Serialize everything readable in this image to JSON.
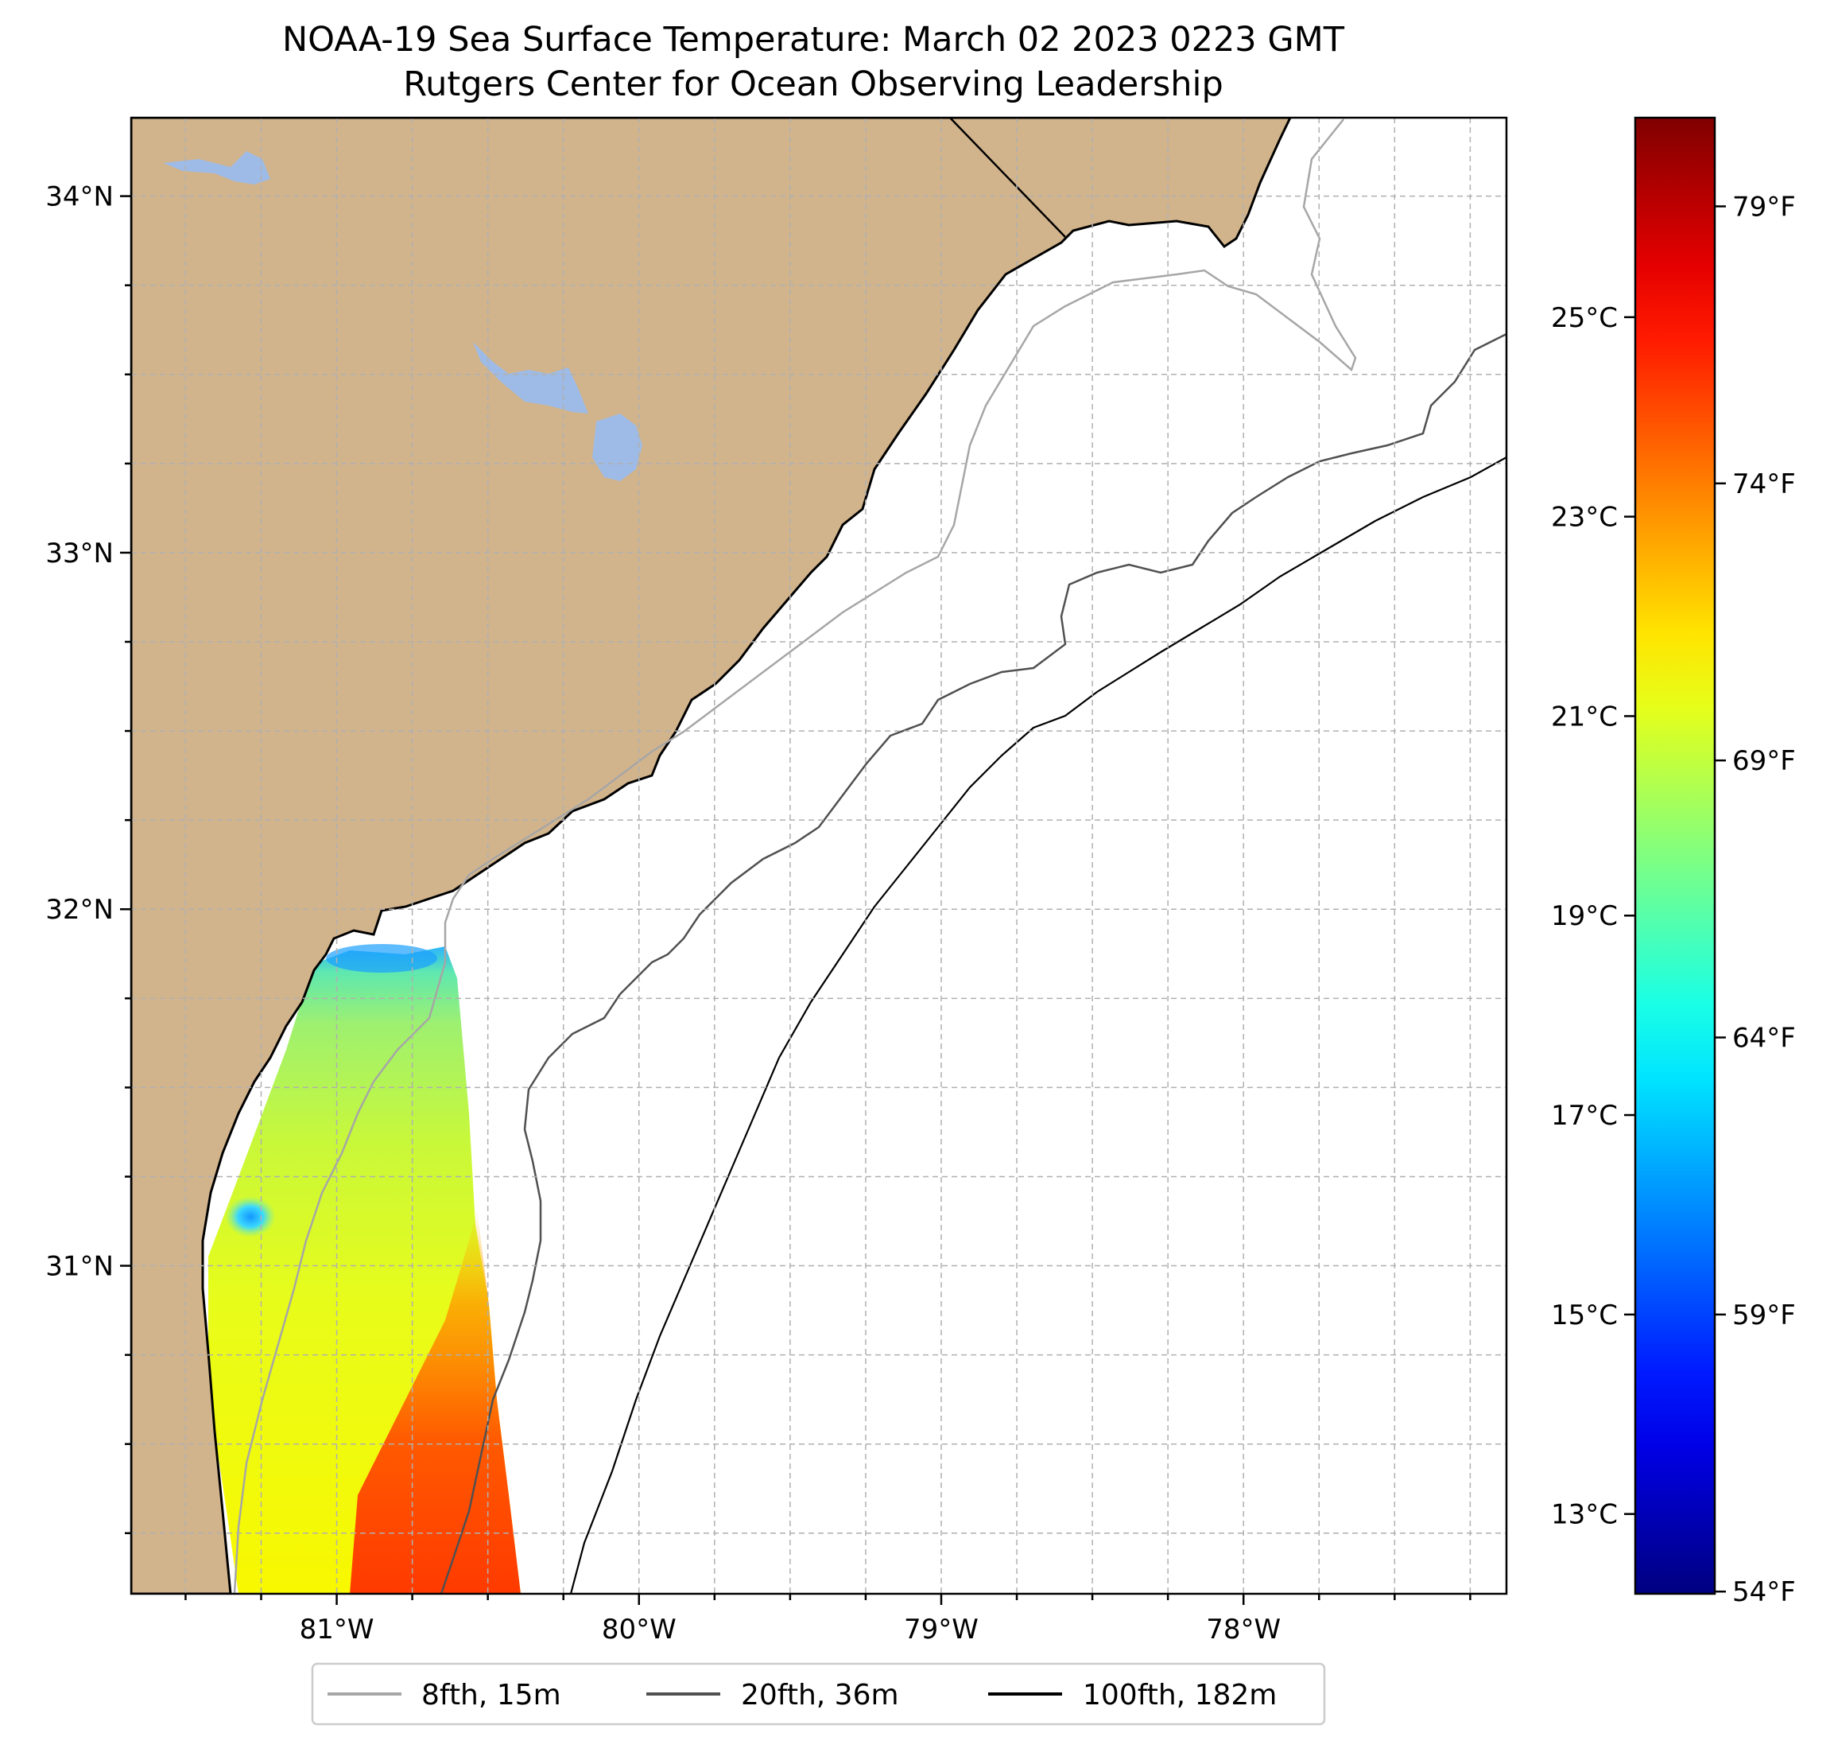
{
  "title": {
    "line1": "NOAA-19 Sea Surface Temperature: March 02 2023 0223 GMT",
    "line2": "Rutgers Center for Ocean Observing Leadership"
  },
  "map": {
    "lon_range": [
      -81.68,
      -77.13
    ],
    "lat_range": [
      30.08,
      34.22
    ],
    "lat_ticks": [
      {
        "value": 34,
        "label": "34°N"
      },
      {
        "value": 33,
        "label": "33°N"
      },
      {
        "value": 32,
        "label": "32°N"
      },
      {
        "value": 31,
        "label": "31°N"
      }
    ],
    "lon_ticks": [
      {
        "value": -81,
        "label": "81°W"
      },
      {
        "value": -80,
        "label": "80°W"
      },
      {
        "value": -79,
        "label": "79°W"
      },
      {
        "value": -78,
        "label": "78°W"
      }
    ],
    "gridlines": true,
    "colors": {
      "land": "#d2b48c",
      "lakes": "#9dbbe6",
      "ocean": "#ffffff",
      "grid": "#b0b0b0",
      "coast": "#000000",
      "iso_8fth": "#a6a6a6",
      "iso_20fth": "#505050",
      "iso_100fth": "#000000"
    }
  },
  "colorbar": {
    "colormap": "jet",
    "range_c": [
      12.2,
      27.0
    ],
    "celsius_ticks": [
      {
        "value": 25,
        "label": "25°C"
      },
      {
        "value": 23,
        "label": "23°C"
      },
      {
        "value": 21,
        "label": "21°C"
      },
      {
        "value": 19,
        "label": "19°C"
      },
      {
        "value": 17,
        "label": "17°C"
      },
      {
        "value": 15,
        "label": "15°C"
      },
      {
        "value": 13,
        "label": "13°C"
      }
    ],
    "fahrenheit_ticks": [
      {
        "value": 79,
        "label": "79°F"
      },
      {
        "value": 74,
        "label": "74°F"
      },
      {
        "value": 69,
        "label": "69°F"
      },
      {
        "value": 64,
        "label": "64°F"
      },
      {
        "value": 59,
        "label": "59°F"
      },
      {
        "value": 54,
        "label": "54°F"
      }
    ]
  },
  "legend": {
    "position": "bottom-center",
    "items": [
      {
        "label": "8fth, 15m",
        "color": "#a6a6a6"
      },
      {
        "label": "20fth, 36m",
        "color": "#505050"
      },
      {
        "label": "100fth, 182m",
        "color": "#000000"
      }
    ]
  }
}
